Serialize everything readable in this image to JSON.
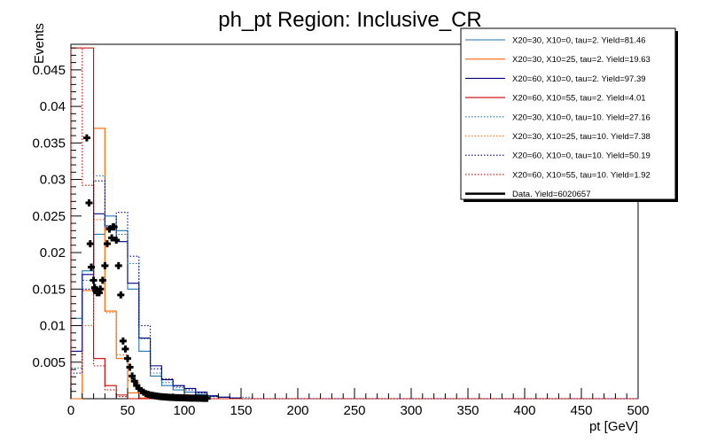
{
  "chart_data": {
    "type": "histogram",
    "title": "ph_pt Region: Inclusive_CR",
    "xlabel": "pt [GeV]",
    "ylabel": "Events",
    "xlim": [
      0,
      500
    ],
    "ylim": [
      0,
      0.0485
    ],
    "bin_width": 10,
    "x_ticks": [
      0,
      50,
      100,
      150,
      200,
      250,
      300,
      350,
      400,
      450,
      500
    ],
    "y_ticks": [
      0.005,
      0.01,
      0.015,
      0.02,
      0.025,
      0.03,
      0.035,
      0.04,
      0.045
    ],
    "y_tick_labels": [
      "0.005",
      "0.01",
      "0.015",
      "0.02",
      "0.025",
      "0.03",
      "0.035",
      "0.04",
      "0.045"
    ],
    "legend_position": "top-right",
    "series": [
      {
        "name": "X20=30, X10=0, tau=2. Yield=81.46",
        "color": "#1f77b4",
        "style": "solid",
        "values": [
          0.011,
          0.0175,
          0.0225,
          0.025,
          0.023,
          0.015,
          0.0065,
          0.0031,
          0.0018,
          0.0012,
          0.0009,
          0.0006,
          0.0003,
          0.0002,
          0.0001
        ]
      },
      {
        "name": "X20=30, X10=25, tau=2. Yield=19.63",
        "color": "#ff6600",
        "style": "solid",
        "values": [
          0,
          0.0148,
          0.037,
          0.012,
          0.0055,
          0.0008,
          0.0001
        ]
      },
      {
        "name": "X20=60, X10=0, tau=2. Yield=97.39",
        "color": "#000080",
        "style": "solid",
        "values": [
          0.0065,
          0.017,
          0.0253,
          0.0235,
          0.0215,
          0.0158,
          0.0083,
          0.0045,
          0.0026,
          0.0018,
          0.0014,
          0.0009,
          0.0004,
          0.0002,
          0.0001
        ]
      },
      {
        "name": "X20=60, X10=55, tau=2. Yield=4.01",
        "color": "#cc0000",
        "style": "solid",
        "values": [
          0.048,
          0.048,
          0.0055,
          0.0018,
          0.0005
        ]
      },
      {
        "name": "X20=30, X10=0, tau=10. Yield=27.16",
        "color": "#1f77b4",
        "style": "dotted",
        "values": [
          0.0042,
          0.0162,
          0.0305,
          0.0235,
          0.0225,
          0.0185,
          0.0082,
          0.0035,
          0.0022,
          0.0015,
          0.0009,
          0.0006,
          0.0003,
          0.0002,
          0.0001,
          0.0002
        ]
      },
      {
        "name": "X20=30, X10=25, tau=10. Yield=7.38",
        "color": "#ff6600",
        "style": "dotted",
        "values": [
          0,
          0.01,
          0.0245,
          0.0118,
          0.006,
          0.0025,
          0.0008,
          0.0002
        ]
      },
      {
        "name": "X20=60, X10=0, tau=10. Yield=50.19",
        "color": "#000080",
        "style": "dotted",
        "values": [
          0.0035,
          0.015,
          0.0298,
          0.0237,
          0.0255,
          0.0195,
          0.01,
          0.0041,
          0.0027,
          0.0017,
          0.0012,
          0.0008,
          0.0003,
          0.0002,
          0.0001
        ]
      },
      {
        "name": "X20=60, X10=55, tau=10. Yield=1.92",
        "color": "#cc0000",
        "style": "dotted",
        "values": [
          0.048,
          0.0292,
          0.0045,
          0.0012,
          0.0003
        ]
      }
    ],
    "data": {
      "name": "Data. Yield=6020657",
      "color": "#000000",
      "points": [
        [
          14,
          0.0357
        ],
        [
          16,
          0.0268
        ],
        [
          17,
          0.0212
        ],
        [
          18,
          0.018
        ],
        [
          20,
          0.0162
        ],
        [
          21,
          0.0152
        ],
        [
          22,
          0.0148
        ],
        [
          23,
          0.0145
        ],
        [
          25,
          0.0145
        ],
        [
          26,
          0.015
        ],
        [
          28,
          0.0162
        ],
        [
          30,
          0.0182
        ],
        [
          32,
          0.0212
        ],
        [
          34,
          0.0232
        ],
        [
          36,
          0.022
        ],
        [
          37,
          0.0235
        ],
        [
          38,
          0.0235
        ],
        [
          40,
          0.0217
        ],
        [
          42,
          0.0182
        ],
        [
          44,
          0.0142
        ],
        [
          46,
          0.0079
        ],
        [
          48,
          0.0068
        ],
        [
          50,
          0.0055
        ],
        [
          52,
          0.0043
        ],
        [
          54,
          0.0031
        ],
        [
          56,
          0.0024
        ],
        [
          58,
          0.0018
        ],
        [
          60,
          0.0014
        ],
        [
          62,
          0.0011
        ],
        [
          64,
          0.0009
        ],
        [
          66,
          0.0007
        ],
        [
          68,
          0.0006
        ],
        [
          70,
          0.0005
        ],
        [
          72,
          0.00045
        ],
        [
          74,
          0.0004
        ],
        [
          76,
          0.00035
        ],
        [
          78,
          0.0003
        ],
        [
          80,
          0.00028
        ],
        [
          82,
          0.00025
        ],
        [
          84,
          0.00023
        ],
        [
          86,
          0.0002
        ],
        [
          88,
          0.00018
        ],
        [
          90,
          0.00017
        ],
        [
          92,
          0.00015
        ],
        [
          94,
          0.00014
        ],
        [
          96,
          0.00013
        ],
        [
          98,
          0.00012
        ],
        [
          100,
          0.00011
        ],
        [
          102,
          0.0001
        ],
        [
          104,
          9e-05
        ],
        [
          106,
          8e-05
        ],
        [
          108,
          8e-05
        ],
        [
          110,
          7e-05
        ],
        [
          112,
          6e-05
        ],
        [
          114,
          6e-05
        ],
        [
          116,
          5e-05
        ],
        [
          118,
          5e-05
        ],
        [
          120,
          5e-05
        ]
      ]
    }
  }
}
